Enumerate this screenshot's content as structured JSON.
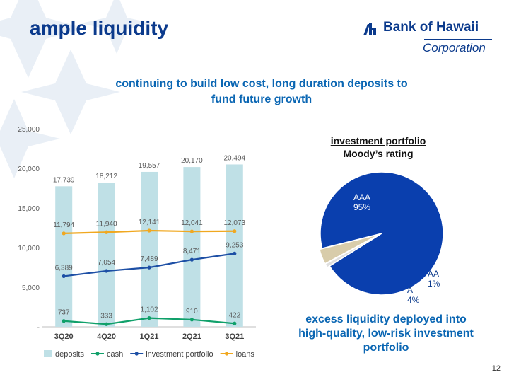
{
  "slide": {
    "title": "ample liquidity",
    "subtitle_lines": [
      "continuing to build low cost, long duration deposits to",
      "fund future growth"
    ],
    "callout_lines": [
      "excess liquidity deployed into",
      "high-quality, low-risk investment",
      "portfolio"
    ],
    "page_number": "12"
  },
  "logo": {
    "name": "Bank of Hawaii",
    "sub": "Corporation"
  },
  "colors": {
    "navy": "#0b3a8c",
    "accent_blue": "#0a66b3",
    "deposits_bar": "#bfe0e6",
    "cash_line": "#10a06a",
    "investment_line": "#1d4fa5",
    "loans_line": "#f0a820",
    "pie_aaa": "#0a3fae",
    "pie_aa": "#dfdfdf",
    "pie_a": "#d8ccaa"
  },
  "chart_data": [
    {
      "type": "bar",
      "categories": [
        "3Q20",
        "4Q20",
        "1Q21",
        "2Q21",
        "3Q21"
      ],
      "y_ticks": [
        "25,000",
        "20,000",
        "15,000",
        "10,000",
        "5,000",
        "-"
      ],
      "ylim": [
        0,
        25000
      ],
      "grid": false,
      "legend_position": "bottom",
      "series": [
        {
          "name": "deposits",
          "kind": "bar",
          "values": [
            17739,
            18212,
            19557,
            20170,
            20494
          ],
          "labels": [
            "17,739",
            "18,212",
            "19,557",
            "20,170",
            "20,494"
          ]
        },
        {
          "name": "cash",
          "kind": "line",
          "values": [
            737,
            333,
            1102,
            910,
            422
          ],
          "labels": [
            "737",
            "333",
            "1,102",
            "910",
            "422"
          ]
        },
        {
          "name": "investment portfolio",
          "kind": "line",
          "values": [
            6389,
            7054,
            7489,
            8471,
            9253
          ],
          "labels": [
            "6,389",
            "7,054",
            "7,489",
            "8,471",
            "9,253"
          ]
        },
        {
          "name": "loans",
          "kind": "line",
          "values": [
            11794,
            11940,
            12141,
            12041,
            12073
          ],
          "labels": [
            "11,794",
            "11,940",
            "12,141",
            "12,041",
            "12,073"
          ]
        }
      ]
    },
    {
      "type": "pie",
      "title_lines": [
        "investment portfolio",
        "Moody’s rating"
      ],
      "slices": [
        {
          "name": "AAA",
          "value": 95,
          "label": "95%"
        },
        {
          "name": "AA",
          "value": 1,
          "label": "1%"
        },
        {
          "name": "A",
          "value": 4,
          "label": "4%"
        }
      ]
    }
  ]
}
